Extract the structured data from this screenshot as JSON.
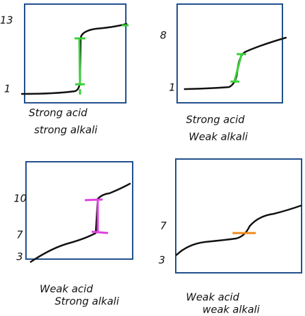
{
  "panels": [
    {
      "caption": [
        "Strong acid",
        "strong alkali"
      ],
      "axis_labels": [
        "13",
        "1"
      ]
    },
    {
      "caption": [
        "Strong acid",
        "Weak alkali"
      ],
      "axis_labels": [
        "8",
        "1"
      ]
    },
    {
      "caption": [
        "Weak acid",
        "Strong alkali"
      ],
      "axis_labels": [
        "10",
        "7",
        "3"
      ]
    },
    {
      "caption": [
        "Weak acid",
        "weak alkali"
      ],
      "axis_labels": [
        "7",
        "3"
      ]
    }
  ]
}
